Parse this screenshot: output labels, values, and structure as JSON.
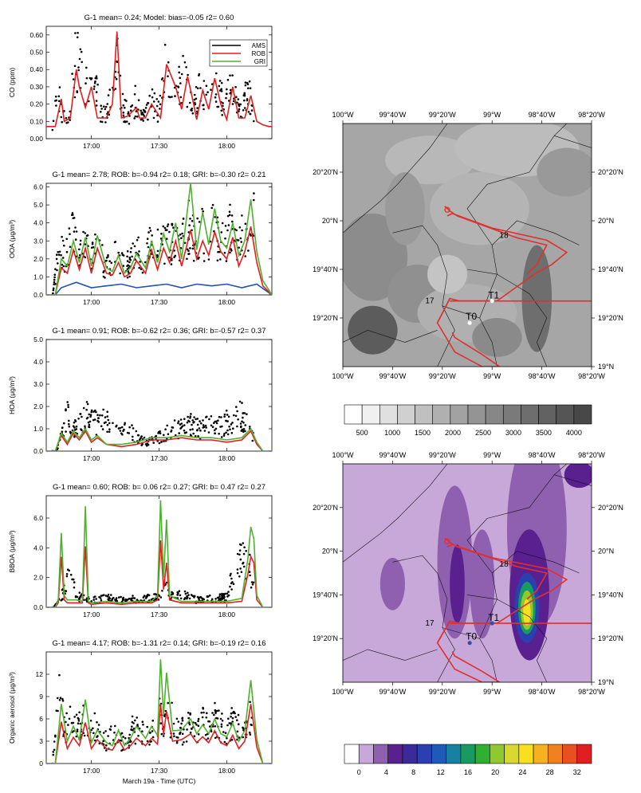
{
  "left_panels": [
    {
      "title": "G-1 mean= 0.24; Model: bias=-0.05   r2= 0.60",
      "ylabel": "CO (ppm)",
      "ylim": [
        0,
        0.65
      ],
      "yticks": [
        "0.00",
        "0.10",
        "0.20",
        "0.30",
        "0.40",
        "0.50",
        "0.60"
      ],
      "ytick_values": [
        0,
        0.1,
        0.2,
        0.3,
        0.4,
        0.5,
        0.6
      ],
      "legend": [
        "AMS",
        "ROB",
        "GRI"
      ],
      "series": [
        {
          "name": "ROB",
          "color": "#e02020",
          "x": [
            0,
            6,
            10,
            12,
            16,
            20,
            22,
            26,
            30,
            34,
            40,
            44,
            47,
            50,
            54,
            60,
            62,
            66,
            70,
            76,
            80,
            86,
            90,
            94,
            98,
            100,
            104,
            108,
            112,
            116,
            120,
            124,
            128,
            132,
            136,
            140,
            144,
            148,
            150
          ],
          "y": [
            0.07,
            0.07,
            0.23,
            0.1,
            0.12,
            0.4,
            0.3,
            0.18,
            0.3,
            0.12,
            0.12,
            0.2,
            0.62,
            0.12,
            0.13,
            0.18,
            0.12,
            0.12,
            0.2,
            0.12,
            0.43,
            0.3,
            0.17,
            0.36,
            0.2,
            0.11,
            0.28,
            0.17,
            0.35,
            0.2,
            0.11,
            0.3,
            0.12,
            0.12,
            0.25,
            0.1,
            0.08,
            0.07,
            0.07
          ]
        }
      ],
      "points_seed": 1,
      "points_base": [
        0.07,
        0.07,
        0.25,
        0.12,
        0.14,
        0.48,
        0.38,
        0.3,
        0.42,
        0.15,
        0.14,
        0.22,
        0.4,
        0.16,
        0.15,
        0.22,
        0.16,
        0.14,
        0.22,
        0.16,
        0.38,
        0.32,
        0.24,
        0.38,
        0.25,
        0.18,
        0.3,
        0.22,
        0.4,
        0.3,
        0.18,
        0.35,
        0.2,
        0.16,
        0.28,
        0.12,
        0.08,
        0.07,
        0.07
      ]
    },
    {
      "title": "G-1 mean= 2.78; ROB: b=-0.94 r2= 0.18; GRI: b=-0.30 r2= 0.21",
      "ylabel": "OOA (μg/m³)",
      "ylim": [
        0,
        6.2
      ],
      "yticks": [
        "0.0",
        "1.0",
        "2.0",
        "3.0",
        "4.0",
        "5.0",
        "6.0"
      ],
      "ytick_values": [
        0,
        1,
        2,
        3,
        4,
        5,
        6
      ],
      "series": [
        {
          "name": "AMS",
          "color": "#2050b0",
          "x": [
            0,
            6,
            10,
            20,
            30,
            40,
            50,
            60,
            70,
            80,
            90,
            100,
            110,
            120,
            130,
            140,
            150
          ],
          "y": [
            0,
            0,
            0.4,
            0.7,
            0.4,
            0.5,
            0.6,
            0.4,
            0.5,
            0.6,
            0.4,
            0.6,
            0.5,
            0.6,
            0.4,
            0.6,
            0
          ]
        },
        {
          "name": "ROB",
          "color": "#e02020",
          "x": [
            0,
            6,
            10,
            14,
            18,
            22,
            26,
            30,
            34,
            40,
            44,
            48,
            52,
            56,
            60,
            66,
            70,
            74,
            78,
            82,
            86,
            90,
            96,
            100,
            104,
            108,
            112,
            116,
            120,
            124,
            128,
            132,
            136,
            140,
            144,
            150
          ],
          "y": [
            0,
            0,
            1.5,
            1.2,
            2.5,
            1.4,
            2.6,
            1.2,
            2.6,
            1.2,
            1.1,
            1.8,
            1.0,
            1.2,
            1.9,
            1.2,
            2.5,
            1.4,
            2.6,
            1.8,
            3.0,
            1.6,
            3.6,
            2.0,
            3.0,
            2.2,
            3.5,
            2.4,
            2.0,
            3.2,
            1.6,
            2.4,
            3.8,
            1.8,
            0.5,
            0
          ]
        },
        {
          "name": "GRI",
          "color": "#50b030",
          "x": [
            0,
            6,
            10,
            14,
            18,
            22,
            26,
            30,
            34,
            40,
            44,
            48,
            52,
            56,
            60,
            66,
            70,
            74,
            78,
            82,
            86,
            90,
            96,
            100,
            104,
            108,
            112,
            116,
            120,
            124,
            128,
            132,
            136,
            140,
            144,
            150
          ],
          "y": [
            0,
            0,
            2.0,
            1.6,
            3.0,
            1.8,
            3.2,
            1.6,
            3.3,
            1.5,
            1.3,
            2.2,
            1.2,
            1.5,
            2.3,
            1.5,
            3.0,
            1.8,
            3.4,
            2.4,
            4.0,
            2.0,
            6.2,
            2.5,
            4.6,
            2.8,
            4.8,
            3.0,
            2.6,
            4.0,
            2.2,
            3.0,
            5.3,
            2.4,
            0.8,
            0
          ]
        }
      ],
      "points_seed": 2,
      "points_base": [
        0,
        0,
        2.5,
        2.2,
        3.2,
        2.6,
        2.8,
        2.0,
        2.8,
        1.6,
        1.5,
        2.4,
        1.6,
        1.8,
        2.4,
        1.8,
        2.6,
        2.2,
        3.2,
        2.8,
        3.4,
        2.8,
        3.8,
        3.0,
        3.5,
        3.0,
        3.8,
        3.2,
        3.0,
        4.0,
        2.8,
        3.5,
        4.2,
        3.0,
        1.0,
        0
      ]
    },
    {
      "title": "G-1 mean= 0.91; ROB: b=-0.62 r2= 0.36; GRI: b=-0.57 r2= 0.37",
      "ylabel": "HOA (μg/m³)",
      "ylim": [
        0,
        5
      ],
      "yticks": [
        "0.0",
        "1.0",
        "2.0",
        "3.0",
        "4.0",
        "5.0"
      ],
      "ytick_values": [
        0,
        1,
        2,
        3,
        4,
        5
      ],
      "series": [
        {
          "name": "ROB",
          "color": "#e02020",
          "x": [
            0,
            6,
            10,
            14,
            18,
            22,
            26,
            30,
            34,
            40,
            50,
            60,
            70,
            80,
            90,
            100,
            110,
            120,
            130,
            136,
            140,
            144,
            150
          ],
          "y": [
            0,
            0,
            0.7,
            0.3,
            0.8,
            0.5,
            0.9,
            0.4,
            0.6,
            0.3,
            0.2,
            0.3,
            0.5,
            0.5,
            0.6,
            0.5,
            0.5,
            0.4,
            0.5,
            0.9,
            0.3,
            0,
            0
          ]
        },
        {
          "name": "GRI",
          "color": "#50b030",
          "x": [
            0,
            6,
            10,
            14,
            18,
            22,
            26,
            30,
            34,
            40,
            50,
            60,
            70,
            80,
            90,
            100,
            110,
            120,
            130,
            136,
            140,
            144,
            150
          ],
          "y": [
            0,
            0,
            0.8,
            0.4,
            0.9,
            0.6,
            1.0,
            0.5,
            0.7,
            0.3,
            0.3,
            0.4,
            0.6,
            0.6,
            0.7,
            0.6,
            0.6,
            0.5,
            0.6,
            1.0,
            0.4,
            0,
            0
          ]
        }
      ],
      "points_seed": 3,
      "points_base": [
        0,
        0,
        1.6,
        1.0,
        1.6,
        1.2,
        1.4,
        0.8,
        1.0,
        0.5,
        0.4,
        0.6,
        0.9,
        1.0,
        1.2,
        1.0,
        1.2,
        1.1,
        1.4,
        1.6,
        0.8,
        0,
        0
      ]
    },
    {
      "title": "G-1 mean= 0.60; ROB: b= 0.06 r2= 0.27; GRI: b= 0.47 r2= 0.27",
      "ylabel": "BBOA (μg/m³)",
      "ylim": [
        0,
        7.5
      ],
      "yticks": [
        "0.0",
        "2.0",
        "4.0",
        "6.0"
      ],
      "ytick_values": [
        0,
        2,
        4,
        6
      ],
      "series": [
        {
          "name": "ROB",
          "color": "#e02020",
          "x": [
            0,
            6,
            8,
            10,
            12,
            14,
            20,
            24,
            26,
            28,
            30,
            40,
            50,
            60,
            70,
            74,
            76,
            78,
            80,
            82,
            90,
            100,
            110,
            120,
            130,
            134,
            136,
            138,
            140,
            144,
            150
          ],
          "y": [
            0,
            0,
            0.3,
            3.4,
            0.5,
            0.3,
            0.3,
            0.3,
            4.1,
            0.3,
            0.2,
            0.3,
            0.2,
            0.3,
            0.3,
            0.5,
            4.5,
            1.2,
            3.0,
            0.5,
            0.3,
            0.3,
            0.3,
            0.3,
            0.4,
            2.2,
            3.4,
            3.0,
            0.5,
            0,
            0
          ]
        },
        {
          "name": "GRI",
          "color": "#50b030",
          "x": [
            0,
            6,
            8,
            10,
            12,
            14,
            20,
            24,
            26,
            28,
            30,
            40,
            50,
            60,
            70,
            74,
            76,
            78,
            80,
            82,
            90,
            100,
            110,
            120,
            130,
            134,
            136,
            138,
            140,
            144,
            150
          ],
          "y": [
            0,
            0,
            0.5,
            5.0,
            0.8,
            0.5,
            0.5,
            0.4,
            6.8,
            0.4,
            0.3,
            0.4,
            0.3,
            0.4,
            0.4,
            0.8,
            7.2,
            2.0,
            5.9,
            0.8,
            0.4,
            0.4,
            0.4,
            0.4,
            0.6,
            3.2,
            5.4,
            4.6,
            0.8,
            0,
            0
          ]
        }
      ],
      "points_seed": 4,
      "points_base": [
        0,
        0,
        0.6,
        2.5,
        0.8,
        0.6,
        0.5,
        0.5,
        0.7,
        0.5,
        0.5,
        0.6,
        0.5,
        0.6,
        0.6,
        0.8,
        1.2,
        0.8,
        0.9,
        0.7,
        0.5,
        0.5,
        0.6,
        0.6,
        0.7,
        2.4,
        3.2,
        2.8,
        0.8,
        0,
        0
      ]
    },
    {
      "title": "G-1 mean= 4.17; ROB: b=-1.31 r2= 0.14; GRI: b=-0.19 r2= 0.16",
      "ylabel": "Organic aerosol (μg/m³)",
      "xlabel": "March 19a - Time (UTC)",
      "ylim": [
        0,
        15
      ],
      "yticks": [
        "0",
        "3",
        "6",
        "9",
        "12"
      ],
      "ytick_values": [
        0,
        3,
        6,
        9,
        12
      ],
      "series": [
        {
          "name": "ROB",
          "color": "#e02020",
          "x": [
            0,
            6,
            10,
            14,
            18,
            22,
            26,
            30,
            34,
            40,
            44,
            48,
            52,
            56,
            60,
            66,
            70,
            74,
            76,
            78,
            80,
            84,
            90,
            96,
            100,
            104,
            108,
            112,
            116,
            120,
            124,
            128,
            132,
            136,
            140,
            144,
            150
          ],
          "y": [
            0,
            0,
            5.6,
            2.0,
            3.5,
            2.4,
            5.5,
            2.0,
            3.2,
            2.0,
            1.8,
            3.2,
            1.8,
            2.4,
            3.4,
            2.4,
            3.4,
            2.6,
            8.0,
            4.0,
            7.0,
            3.0,
            3.2,
            4.0,
            2.8,
            3.6,
            2.8,
            4.4,
            2.8,
            2.4,
            3.8,
            2.0,
            3.0,
            8.0,
            2.2,
            0,
            0
          ]
        },
        {
          "name": "GRI",
          "color": "#50b030",
          "x": [
            0,
            6,
            10,
            14,
            18,
            22,
            26,
            30,
            34,
            40,
            44,
            48,
            52,
            56,
            60,
            66,
            70,
            74,
            76,
            78,
            80,
            84,
            90,
            96,
            100,
            104,
            108,
            112,
            116,
            120,
            124,
            128,
            132,
            136,
            140,
            144,
            150
          ],
          "y": [
            0,
            0,
            8.0,
            3.0,
            5.0,
            3.2,
            8.6,
            2.8,
            4.5,
            2.8,
            2.4,
            4.5,
            2.4,
            3.4,
            5.0,
            3.4,
            5.0,
            3.8,
            14.0,
            6.5,
            12.2,
            4.4,
            4.5,
            6.0,
            4.0,
            5.2,
            4.0,
            6.0,
            4.0,
            3.6,
            5.4,
            3.0,
            4.4,
            11.2,
            3.2,
            0,
            0
          ]
        }
      ],
      "points_seed": 5,
      "points_base": [
        0,
        0,
        9.0,
        5.0,
        6.0,
        4.5,
        5.5,
        4.0,
        5.0,
        3.5,
        3.0,
        4.5,
        3.0,
        3.5,
        4.8,
        3.8,
        4.5,
        4.0,
        7.0,
        5.0,
        6.5,
        4.5,
        4.2,
        5.0,
        4.5,
        5.2,
        4.6,
        6.0,
        4.8,
        4.2,
        5.8,
        4.0,
        4.6,
        8.5,
        3.0,
        0,
        0
      ]
    }
  ],
  "time_ticks": [
    "17:00",
    "17:30",
    "18:00"
  ],
  "time_tick_values": [
    30,
    75,
    120
  ],
  "map_lon_ticks": [
    "100°W",
    "99°40'W",
    "99°20'W",
    "99°W",
    "98°40'W",
    "98°20'W"
  ],
  "map_lat_ticks_left": [
    "20°20'N",
    "20°N",
    "19°40'N",
    "19°20'N"
  ],
  "map_lat_ticks_right": [
    "20°20'N",
    "20°N",
    "19°40'N",
    "19°20'N",
    "19°N"
  ],
  "map_labels": {
    "t0": "T0",
    "t1": "T1",
    "n17": "17",
    "n18": "18"
  },
  "colorbar_top": {
    "labels": [
      "500",
      "1000",
      "1500",
      "2000",
      "2500",
      "3000",
      "3500",
      "4000"
    ],
    "colors": [
      "#ffffff",
      "#f0f0f0",
      "#e0e0e0",
      "#d0d0d0",
      "#c0c0c0",
      "#b0b0b0",
      "#a2a2a2",
      "#949494",
      "#878787",
      "#7a7a7a",
      "#6e6e6e",
      "#626262",
      "#555555",
      "#484848"
    ]
  },
  "colorbar_bottom": {
    "labels": [
      "0",
      "4",
      "8",
      "12",
      "16",
      "20",
      "24",
      "28",
      "32"
    ],
    "colors": [
      "#ffffff",
      "#c8a8d8",
      "#9060b0",
      "#5a2090",
      "#3a2a9a",
      "#2a40b0",
      "#1e5ab8",
      "#1880a0",
      "#189a60",
      "#30b030",
      "#90c830",
      "#d8d830",
      "#f8e020",
      "#f8b020",
      "#f08020",
      "#e85020",
      "#e02020"
    ]
  },
  "colors": {
    "ams": "#000000",
    "rob": "#e02020",
    "gri": "#50b030",
    "ams_blue": "#2050b0",
    "track": "#e03030"
  }
}
